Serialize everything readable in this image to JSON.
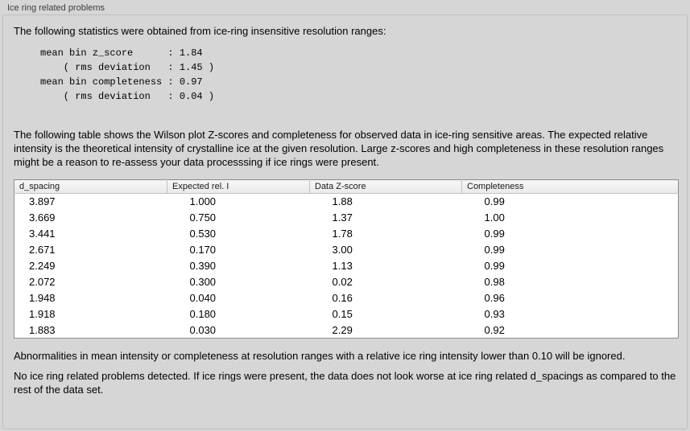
{
  "panel": {
    "title": "Ice ring related problems"
  },
  "intro_text": "The following statistics were obtained from ice-ring insensitive resolution ranges:",
  "stats_lines": [
    "mean bin z_score      : 1.84",
    "    ( rms deviation   : 1.45 )",
    "mean bin completeness : 0.97",
    "    ( rms deviation   : 0.04 )"
  ],
  "table_description": "The following table shows the Wilson plot Z-scores and completeness for observed data in ice-ring sensitive areas. The expected relative intensity is the theoretical intensity of crystalline ice at the given resolution. Large z-scores and high completeness in these resolution ranges might be a reason to re-assess your data processsing if ice rings were present.",
  "table": {
    "columns": [
      "d_spacing",
      "Expected rel. I",
      "Data Z-score",
      "Completeness"
    ],
    "rows": [
      [
        "3.897",
        "1.000",
        "1.88",
        "0.99"
      ],
      [
        "3.669",
        "0.750",
        "1.37",
        "1.00"
      ],
      [
        "3.441",
        "0.530",
        "1.78",
        "0.99"
      ],
      [
        "2.671",
        "0.170",
        "3.00",
        "0.99"
      ],
      [
        "2.249",
        "0.390",
        "1.13",
        "0.99"
      ],
      [
        "2.072",
        "0.300",
        "0.02",
        "0.98"
      ],
      [
        "1.948",
        "0.040",
        "0.16",
        "0.96"
      ],
      [
        "1.918",
        "0.180",
        "0.15",
        "0.93"
      ],
      [
        "1.883",
        "0.030",
        "2.29",
        "0.92"
      ]
    ]
  },
  "ignore_note": "Abnormalities in mean intensity or completeness at resolution ranges with a relative ice ring intensity lower than 0.10 will be ignored.",
  "conclusion": "No ice ring related problems detected. If ice rings were present, the data does not look worse at ice ring related d_spacings as compared to the rest of the data set."
}
